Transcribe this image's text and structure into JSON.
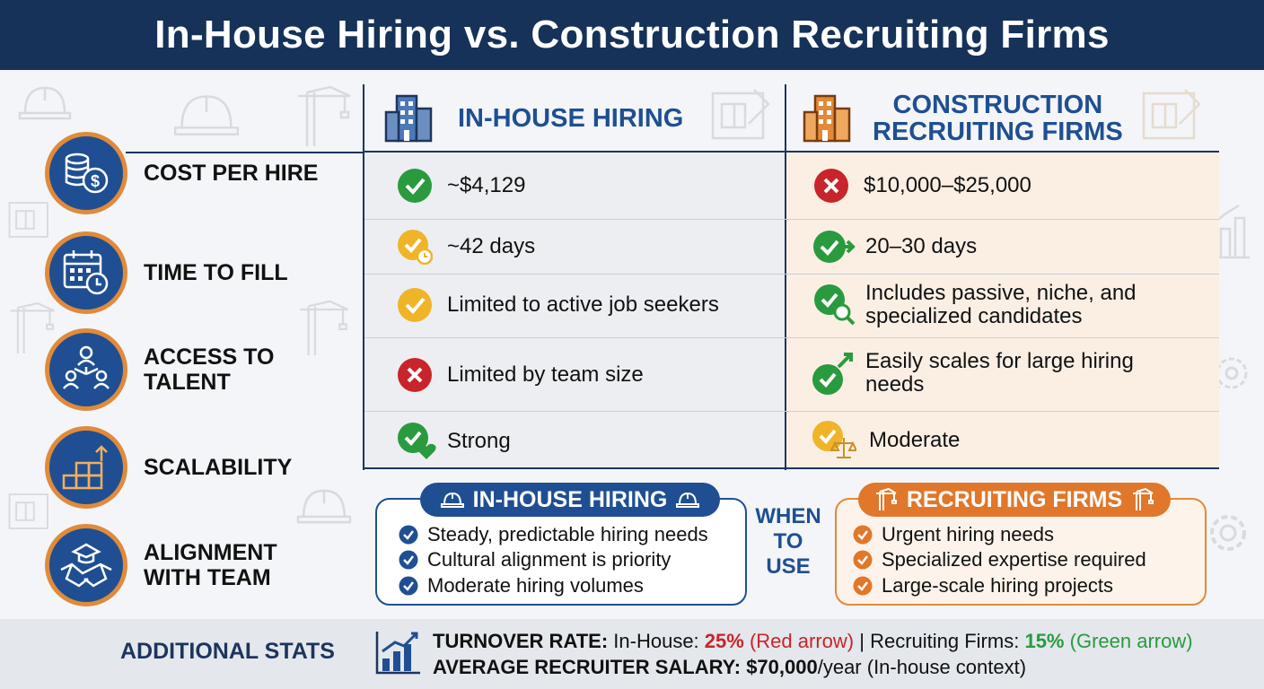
{
  "header": {
    "title": "In-House Hiring vs. Construction Recruiting Firms"
  },
  "criteria": [
    {
      "label": "COST PER HIRE",
      "icon": "coins-dollar-icon"
    },
    {
      "label": "TIME TO FILL",
      "icon": "calendar-clock-icon"
    },
    {
      "label": "ACCESS TO\nTALENT",
      "icon": "network-people-icon"
    },
    {
      "label": "SCALABILITY",
      "icon": "blocks-growth-icon"
    },
    {
      "label": "ALIGNMENT\nWITH TEAM",
      "icon": "handshake-icon"
    }
  ],
  "columns": {
    "in_house": {
      "title": "IN-HOUSE HIRING",
      "icon": "building-icon"
    },
    "firms": {
      "title": "CONSTRUCTION\nRECRUITING FIRMS",
      "icon": "building-icon"
    }
  },
  "rows": [
    {
      "in_house": {
        "text": "~$4,129",
        "status": "check-green"
      },
      "firms": {
        "text": "$10,000–$25,000",
        "status": "x-red"
      }
    },
    {
      "in_house": {
        "text": "~42 days",
        "status": "check-clock-yellow"
      },
      "firms": {
        "text": "20–30 days",
        "status": "check-arrow-green"
      }
    },
    {
      "in_house": {
        "text": "Limited to active job seekers",
        "status": "check-yellow"
      },
      "firms": {
        "text": "Includes passive, niche, and\nspecialized candidates",
        "status": "check-magnifier-green"
      }
    },
    {
      "in_house": {
        "text": "Limited by team size",
        "status": "x-red"
      },
      "firms": {
        "text": "Easily scales for large hiring\nneeds",
        "status": "check-uparrow-green"
      }
    },
    {
      "in_house": {
        "text": "Strong",
        "status": "check-heart-green"
      },
      "firms": {
        "text": "Moderate",
        "status": "check-scale-yellow"
      }
    }
  ],
  "when_to_use": {
    "label": "WHEN\nTO\nUSE",
    "in_house": {
      "title": "IN-HOUSE HIRING",
      "items": [
        "Steady, predictable hiring needs",
        "Cultural alignment is priority",
        "Moderate hiring volumes"
      ]
    },
    "firms": {
      "title": "RECRUITING FIRMS",
      "items": [
        "Urgent hiring needs",
        "Specialized expertise required",
        "Large-scale hiring projects"
      ]
    }
  },
  "stats": {
    "title": "ADDITIONAL STATS",
    "turnover": {
      "label": "TURNOVER RATE:",
      "in_house_label": "In-House:",
      "in_house_value": "25%",
      "in_house_note": "(Red arrow)",
      "divider": "|",
      "firms_label": "Recruiting Firms:",
      "firms_value": "15%",
      "firms_note": "(Green arrow)"
    },
    "salary": {
      "label": "AVERAGE RECRUITER SALARY:",
      "value": "$70,000",
      "suffix": "/year (In-house context)"
    }
  },
  "colors": {
    "navy": "#163259",
    "blue": "#1f4f92",
    "orange": "#e08a3a",
    "green": "#2a9a3e",
    "red": "#c8242b",
    "yellow": "#f0b429"
  }
}
